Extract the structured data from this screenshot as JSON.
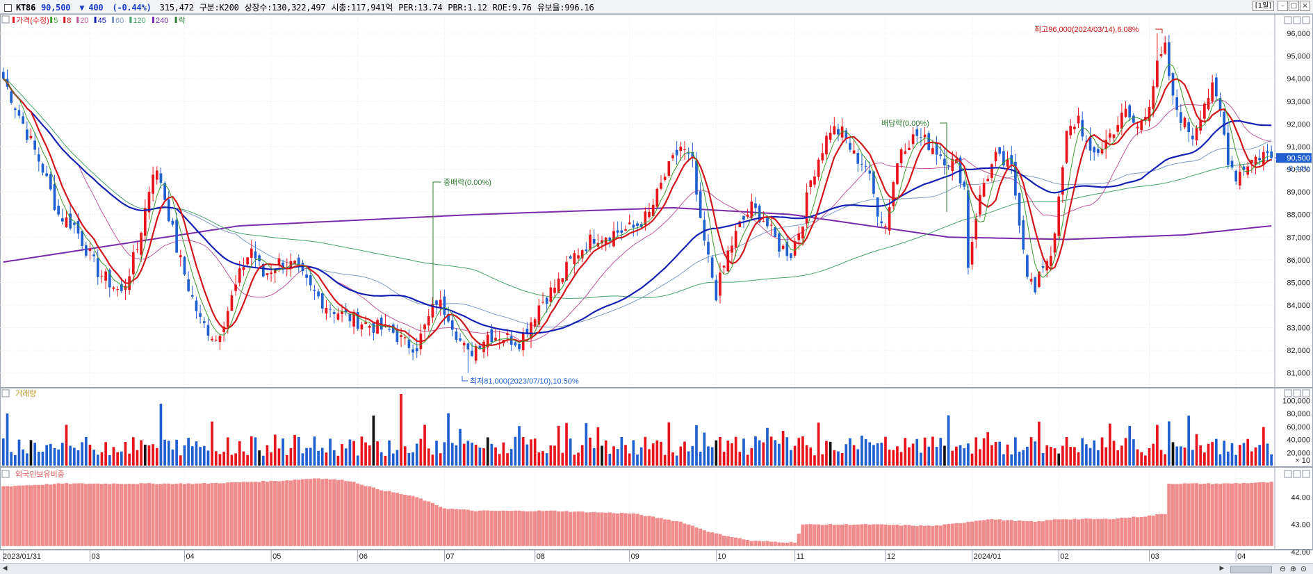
{
  "header": {
    "code": "KT86",
    "price": "90,500",
    "arrow": "▼",
    "change": "400",
    "change_pct": "(-0.44%)",
    "volume": "315,472",
    "division": "구분:K200",
    "shares": "상장수:130,322,497",
    "mktcap": "시총:117,941억",
    "per": "PER:13.74",
    "pbr": "PBR:1.12",
    "roe": "ROE:9.76",
    "retention": "유보율:996.16",
    "period": "[1일]"
  },
  "legend": {
    "price": "가격(수정)",
    "ma5": "5",
    "ma8": "8",
    "ma20": "20",
    "ma45": "45",
    "ma60": "60",
    "ma120": "120",
    "ma240": "240",
    "ex": "락"
  },
  "panels": {
    "volume_title": "거래량",
    "volume_unit": "× 10",
    "foreign_title": "외국인보유비중"
  },
  "annotations": {
    "high": "최고96,000(2024/03/14),6.08%",
    "low": "최저81,000(2023/07/10),10.50%",
    "stock_dividend": "중배락(0.00%)",
    "dividend": "배당락(0.00%)"
  },
  "price_tag": {
    "value": "90,500",
    "change": "-0.44%"
  },
  "colors": {
    "up": "#e8141b",
    "down": "#1f5fd0",
    "ma5": "#3a9c2c",
    "ma8": "#d2161b",
    "ma20": "#c0569a",
    "ma45": "#1420b4",
    "ma60": "#7d9ac4",
    "ma120": "#43a36a",
    "ma240": "#7a2aa8",
    "foreign": "#f08c8c"
  },
  "chart_data": {
    "type": "line",
    "title": "",
    "ylim_price": [
      80500,
      96800
    ],
    "price_ticks": [
      81000,
      82000,
      83000,
      84000,
      85000,
      86000,
      87000,
      88000,
      89000,
      90000,
      91000,
      92000,
      93000,
      94000,
      95000,
      96000
    ],
    "price_tick_labels": [
      "81,000",
      "82,000",
      "83,000",
      "84,000",
      "85,000",
      "86,000",
      "87,000",
      "88,000",
      "89,000",
      "90,000",
      "91,000",
      "92,000",
      "93,000",
      "94,000",
      "95,000",
      "96,000"
    ],
    "volume_ticks": [
      20000,
      40000,
      60000,
      80000,
      100000
    ],
    "volume_tick_labels": [
      "20,000",
      "40,000",
      "60,000",
      "80,000",
      "100,000"
    ],
    "foreign_ticks": [
      42.0,
      43.0,
      44.0
    ],
    "foreign_tick_labels": [
      "42.00",
      "43.00",
      "44.00"
    ],
    "x_labels": [
      "2023/01/31",
      "03",
      "04",
      "05",
      "06",
      "07",
      "08",
      "09",
      "10",
      "11",
      "12",
      "2024/01",
      "02",
      "03",
      "04"
    ],
    "x_label_day_index": [
      0,
      22,
      46,
      68,
      90,
      112,
      135,
      159,
      181,
      201,
      224,
      246,
      268,
      291,
      313
    ],
    "num_days": 323,
    "close_anchors": [
      [
        0,
        94000
      ],
      [
        5,
        92000
      ],
      [
        10,
        90000
      ],
      [
        14,
        88000
      ],
      [
        18,
        87500
      ],
      [
        24,
        85500
      ],
      [
        30,
        84500
      ],
      [
        34,
        86500
      ],
      [
        38,
        90000
      ],
      [
        40,
        89500
      ],
      [
        42,
        88000
      ],
      [
        44,
        86500
      ],
      [
        47,
        84800
      ],
      [
        50,
        83300
      ],
      [
        54,
        82500
      ],
      [
        57,
        83800
      ],
      [
        61,
        85800
      ],
      [
        63,
        86500
      ],
      [
        66,
        85300
      ],
      [
        70,
        85900
      ],
      [
        74,
        85700
      ],
      [
        78,
        84700
      ],
      [
        82,
        84000
      ],
      [
        86,
        83600
      ],
      [
        90,
        83300
      ],
      [
        95,
        83000
      ],
      [
        99,
        82800
      ],
      [
        102,
        82300
      ],
      [
        105,
        82200
      ],
      [
        108,
        83400
      ],
      [
        110,
        84200
      ],
      [
        113,
        83600
      ],
      [
        116,
        82400
      ],
      [
        118,
        81800
      ],
      [
        120,
        82200
      ],
      [
        123,
        82700
      ],
      [
        127,
        82600
      ],
      [
        131,
        82400
      ],
      [
        134,
        83300
      ],
      [
        136,
        84000
      ],
      [
        141,
        85000
      ],
      [
        145,
        86200
      ],
      [
        150,
        87000
      ],
      [
        155,
        87200
      ],
      [
        160,
        87400
      ],
      [
        164,
        88000
      ],
      [
        168,
        89700
      ],
      [
        172,
        91000
      ],
      [
        175,
        90200
      ],
      [
        177,
        87500
      ],
      [
        179,
        86000
      ],
      [
        181,
        84500
      ],
      [
        184,
        86300
      ],
      [
        187,
        87500
      ],
      [
        190,
        88300
      ],
      [
        193,
        87800
      ],
      [
        197,
        86600
      ],
      [
        200,
        86300
      ],
      [
        203,
        87800
      ],
      [
        205,
        89500
      ],
      [
        207,
        90500
      ],
      [
        210,
        91800
      ],
      [
        213,
        91600
      ],
      [
        216,
        90600
      ],
      [
        219,
        90200
      ],
      [
        222,
        88200
      ],
      [
        224,
        87500
      ],
      [
        226,
        89500
      ],
      [
        228,
        91000
      ],
      [
        232,
        91500
      ],
      [
        236,
        91000
      ],
      [
        239,
        90500
      ],
      [
        242,
        90200
      ],
      [
        244,
        89200
      ],
      [
        245,
        85800
      ],
      [
        247,
        88000
      ],
      [
        249,
        89400
      ],
      [
        252,
        90500
      ],
      [
        256,
        90000
      ],
      [
        258,
        87800
      ],
      [
        260,
        85500
      ],
      [
        262,
        84500
      ],
      [
        264,
        85800
      ],
      [
        266,
        86300
      ],
      [
        268,
        88500
      ],
      [
        270,
        91500
      ],
      [
        273,
        92300
      ],
      [
        276,
        90500
      ],
      [
        279,
        91000
      ],
      [
        282,
        91800
      ],
      [
        285,
        92500
      ],
      [
        288,
        91800
      ],
      [
        291,
        93000
      ],
      [
        293,
        94500
      ],
      [
        295,
        95300
      ],
      [
        297,
        93000
      ],
      [
        300,
        92000
      ],
      [
        302,
        91500
      ],
      [
        305,
        93000
      ],
      [
        307,
        93500
      ],
      [
        309,
        92500
      ],
      [
        311,
        90500
      ],
      [
        313,
        89700
      ],
      [
        316,
        90300
      ],
      [
        318,
        90500
      ],
      [
        320,
        90700
      ],
      [
        322,
        90500
      ]
    ],
    "ma240_anchors": [
      [
        0,
        85900
      ],
      [
        60,
        87500
      ],
      [
        120,
        88000
      ],
      [
        170,
        88300
      ],
      [
        200,
        88000
      ],
      [
        240,
        87000
      ],
      [
        270,
        86900
      ],
      [
        300,
        87100
      ],
      [
        322,
        87500
      ]
    ],
    "foreign_anchors": [
      [
        0,
        44.4
      ],
      [
        15,
        44.5
      ],
      [
        50,
        44.5
      ],
      [
        70,
        44.6
      ],
      [
        80,
        44.7
      ],
      [
        88,
        44.6
      ],
      [
        95,
        44.3
      ],
      [
        105,
        44.0
      ],
      [
        112,
        43.6
      ],
      [
        120,
        43.5
      ],
      [
        140,
        43.5
      ],
      [
        160,
        43.4
      ],
      [
        172,
        43.1
      ],
      [
        180,
        42.7
      ],
      [
        190,
        42.4
      ],
      [
        199,
        42.35
      ],
      [
        201,
        42.35
      ],
      [
        203,
        43.0
      ],
      [
        220,
        43.0
      ],
      [
        236,
        42.95
      ],
      [
        240,
        43.0
      ],
      [
        250,
        43.2
      ],
      [
        262,
        43.1
      ],
      [
        268,
        43.2
      ],
      [
        280,
        43.2
      ],
      [
        290,
        43.3
      ],
      [
        295,
        43.4
      ],
      [
        296,
        44.5
      ],
      [
        310,
        44.5
      ],
      [
        322,
        44.55
      ]
    ],
    "ylim_foreign": [
      42.2,
      44.9
    ],
    "ylim_volume": [
      0,
      110000
    ],
    "series": [
      {
        "name": "가격(수정)"
      },
      {
        "name": "5"
      },
      {
        "name": "8"
      },
      {
        "name": "20"
      },
      {
        "name": "45"
      },
      {
        "name": "60"
      },
      {
        "name": "120"
      },
      {
        "name": "240"
      }
    ]
  }
}
